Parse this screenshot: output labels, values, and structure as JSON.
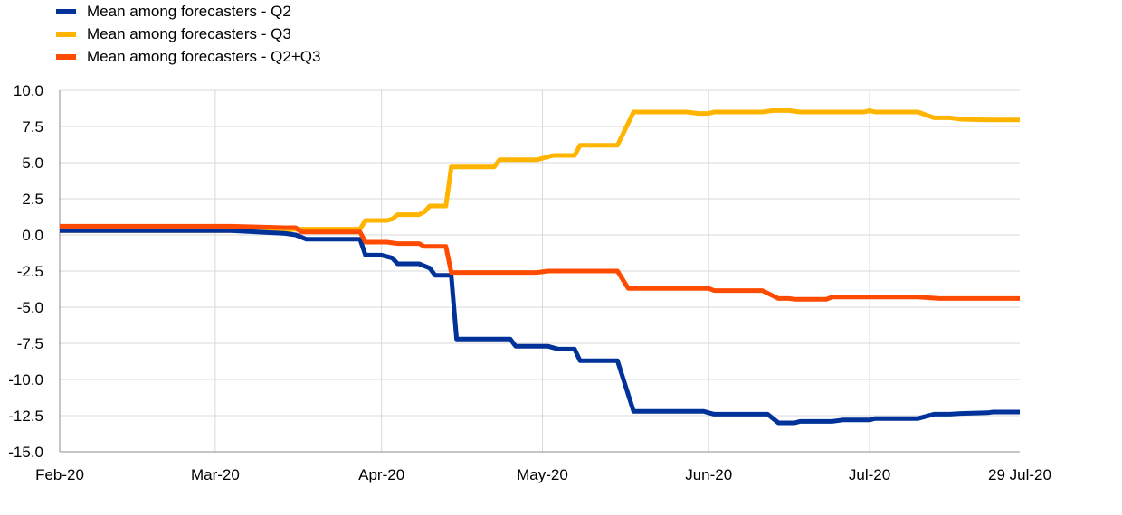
{
  "chart_data": {
    "type": "line",
    "title": "",
    "xlabel": "",
    "ylabel": "",
    "ylim": [
      -15.0,
      10.0
    ],
    "y_ticks": [
      10.0,
      7.5,
      5.0,
      2.5,
      0.0,
      -2.5,
      -5.0,
      -7.5,
      -10.0,
      -12.5,
      -15.0
    ],
    "y_tick_labels": [
      "10.0",
      "7.5",
      "5.0",
      "2.5",
      "0.0",
      "-2.5",
      "-5.0",
      "-7.5",
      "-10.0",
      "-12.5",
      "-15.0"
    ],
    "x_range": [
      "2020-02-01",
      "2020-07-29"
    ],
    "x_ticks": [
      {
        "date": "2020-02-01",
        "label": "Feb-20"
      },
      {
        "date": "2020-03-01",
        "label": "Mar-20"
      },
      {
        "date": "2020-04-01",
        "label": "Apr-20"
      },
      {
        "date": "2020-05-01",
        "label": "May-20"
      },
      {
        "date": "2020-06-01",
        "label": "Jun-20"
      },
      {
        "date": "2020-07-01",
        "label": "Jul-20"
      },
      {
        "date": "2020-07-29",
        "label": "29 Jul-20"
      }
    ],
    "grid": true,
    "legend_position": "top-left",
    "series": [
      {
        "name": "Mean among forecasters - Q2",
        "color": "#003299",
        "points": [
          [
            "2020-02-01",
            0.3
          ],
          [
            "2020-03-04",
            0.3
          ],
          [
            "2020-03-14",
            0.1
          ],
          [
            "2020-03-16",
            0.0
          ],
          [
            "2020-03-18",
            -0.3
          ],
          [
            "2020-03-23",
            -0.3
          ],
          [
            "2020-03-28",
            -0.3
          ],
          [
            "2020-03-29",
            -1.4
          ],
          [
            "2020-04-01",
            -1.4
          ],
          [
            "2020-04-03",
            -1.6
          ],
          [
            "2020-04-04",
            -2.0
          ],
          [
            "2020-04-08",
            -2.0
          ],
          [
            "2020-04-10",
            -2.3
          ],
          [
            "2020-04-11",
            -2.8
          ],
          [
            "2020-04-14",
            -2.8
          ],
          [
            "2020-04-15",
            -7.2
          ],
          [
            "2020-04-25",
            -7.2
          ],
          [
            "2020-04-26",
            -7.7
          ],
          [
            "2020-05-02",
            -7.7
          ],
          [
            "2020-05-04",
            -7.9
          ],
          [
            "2020-05-07",
            -7.9
          ],
          [
            "2020-05-08",
            -8.7
          ],
          [
            "2020-05-15",
            -8.7
          ],
          [
            "2020-05-18",
            -12.2
          ],
          [
            "2020-05-31",
            -12.2
          ],
          [
            "2020-06-02",
            -12.4
          ],
          [
            "2020-06-12",
            -12.4
          ],
          [
            "2020-06-14",
            -13.0
          ],
          [
            "2020-06-17",
            -13.0
          ],
          [
            "2020-06-18",
            -12.9
          ],
          [
            "2020-06-24",
            -12.9
          ],
          [
            "2020-06-26",
            -12.8
          ],
          [
            "2020-07-01",
            -12.8
          ],
          [
            "2020-07-02",
            -12.7
          ],
          [
            "2020-07-10",
            -12.7
          ],
          [
            "2020-07-13",
            -12.4
          ],
          [
            "2020-07-16",
            -12.4
          ],
          [
            "2020-07-18",
            -12.35
          ],
          [
            "2020-07-23",
            -12.3
          ],
          [
            "2020-07-24",
            -12.25
          ],
          [
            "2020-07-29",
            -12.25
          ]
        ]
      },
      {
        "name": "Mean among forecasters - Q3",
        "color": "#FFB400",
        "points": [
          [
            "2020-02-01",
            0.3
          ],
          [
            "2020-03-14",
            0.3
          ],
          [
            "2020-03-16",
            0.4
          ],
          [
            "2020-03-28",
            0.4
          ],
          [
            "2020-03-29",
            1.0
          ],
          [
            "2020-04-02",
            1.0
          ],
          [
            "2020-04-03",
            1.1
          ],
          [
            "2020-04-04",
            1.4
          ],
          [
            "2020-04-08",
            1.4
          ],
          [
            "2020-04-09",
            1.6
          ],
          [
            "2020-04-10",
            2.0
          ],
          [
            "2020-04-13",
            2.0
          ],
          [
            "2020-04-14",
            4.7
          ],
          [
            "2020-04-22",
            4.7
          ],
          [
            "2020-04-23",
            5.2
          ],
          [
            "2020-04-30",
            5.2
          ],
          [
            "2020-05-01",
            5.3
          ],
          [
            "2020-05-03",
            5.5
          ],
          [
            "2020-05-07",
            5.5
          ],
          [
            "2020-05-08",
            6.2
          ],
          [
            "2020-05-15",
            6.2
          ],
          [
            "2020-05-18",
            8.5
          ],
          [
            "2020-05-28",
            8.5
          ],
          [
            "2020-05-30",
            8.4
          ],
          [
            "2020-06-01",
            8.4
          ],
          [
            "2020-06-02",
            8.5
          ],
          [
            "2020-06-11",
            8.5
          ],
          [
            "2020-06-13",
            8.6
          ],
          [
            "2020-06-16",
            8.6
          ],
          [
            "2020-06-18",
            8.5
          ],
          [
            "2020-06-30",
            8.5
          ],
          [
            "2020-07-01",
            8.6
          ],
          [
            "2020-07-02",
            8.5
          ],
          [
            "2020-07-10",
            8.5
          ],
          [
            "2020-07-13",
            8.1
          ],
          [
            "2020-07-16",
            8.1
          ],
          [
            "2020-07-18",
            8.0
          ],
          [
            "2020-07-23",
            7.95
          ],
          [
            "2020-07-29",
            7.95
          ]
        ]
      },
      {
        "name": "Mean among forecasters - Q2+Q3",
        "color": "#FF4B00",
        "points": [
          [
            "2020-02-01",
            0.6
          ],
          [
            "2020-03-04",
            0.6
          ],
          [
            "2020-03-14",
            0.5
          ],
          [
            "2020-03-16",
            0.5
          ],
          [
            "2020-03-17",
            0.2
          ],
          [
            "2020-03-28",
            0.2
          ],
          [
            "2020-03-29",
            -0.5
          ],
          [
            "2020-04-02",
            -0.5
          ],
          [
            "2020-04-04",
            -0.6
          ],
          [
            "2020-04-08",
            -0.6
          ],
          [
            "2020-04-09",
            -0.8
          ],
          [
            "2020-04-13",
            -0.8
          ],
          [
            "2020-04-14",
            -2.6
          ],
          [
            "2020-04-30",
            -2.6
          ],
          [
            "2020-05-02",
            -2.5
          ],
          [
            "2020-05-15",
            -2.5
          ],
          [
            "2020-05-17",
            -3.7
          ],
          [
            "2020-06-01",
            -3.7
          ],
          [
            "2020-06-02",
            -3.85
          ],
          [
            "2020-06-11",
            -3.85
          ],
          [
            "2020-06-14",
            -4.4
          ],
          [
            "2020-06-16",
            -4.4
          ],
          [
            "2020-06-17",
            -4.45
          ],
          [
            "2020-06-23",
            -4.45
          ],
          [
            "2020-06-24",
            -4.3
          ],
          [
            "2020-07-10",
            -4.3
          ],
          [
            "2020-07-14",
            -4.4
          ],
          [
            "2020-07-29",
            -4.4
          ]
        ]
      }
    ]
  }
}
